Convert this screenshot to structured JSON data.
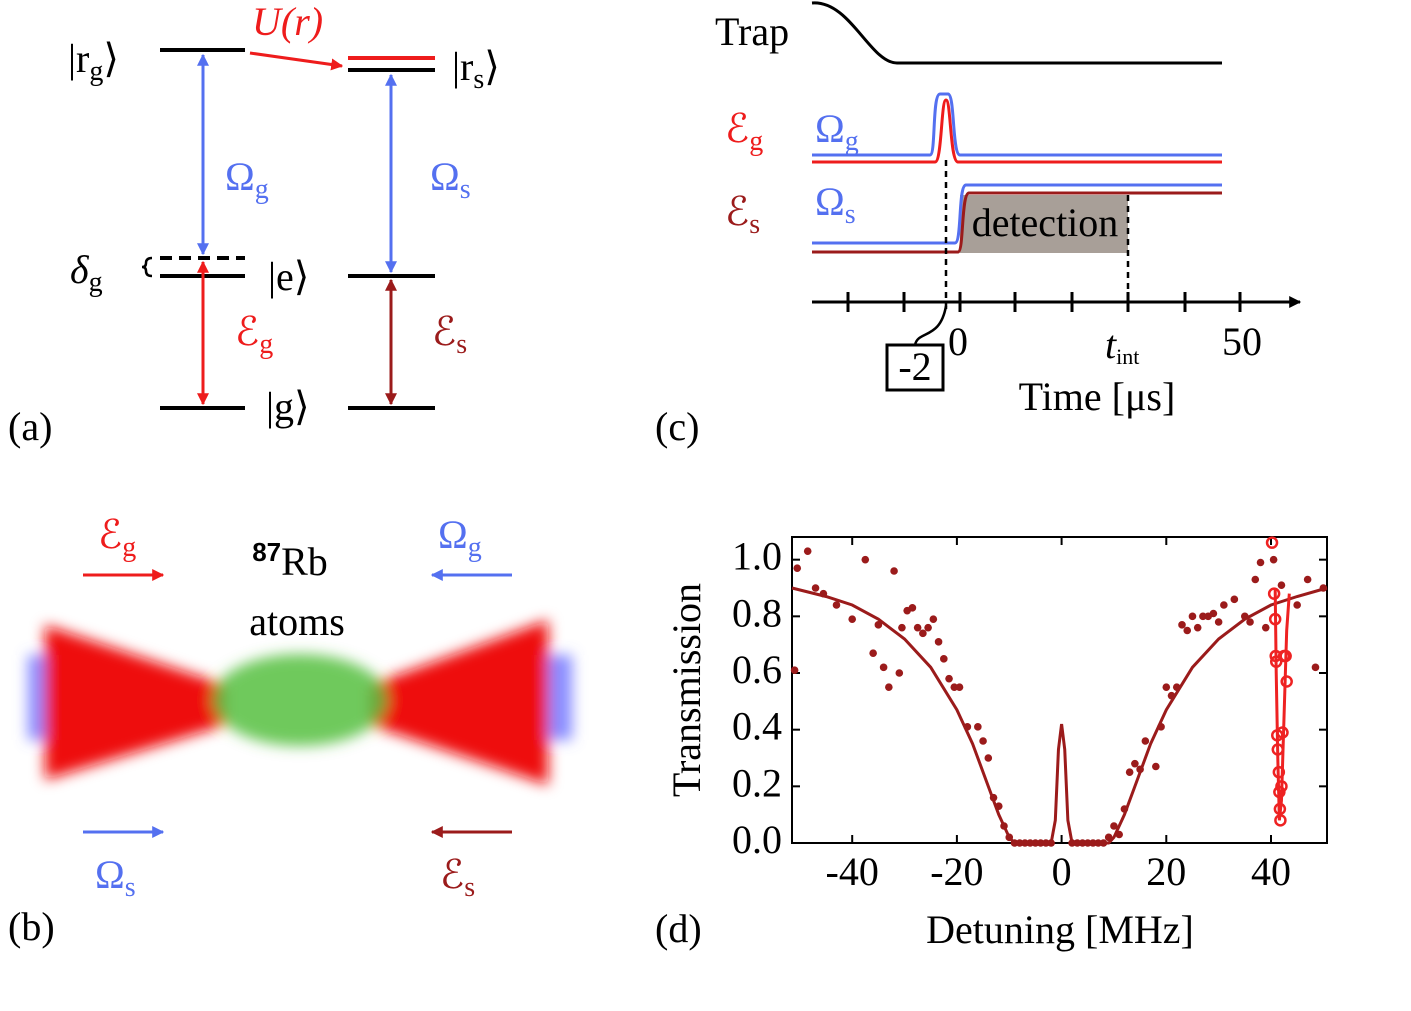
{
  "panel_a": {
    "label": "(a)",
    "r_g": {
      "open": "|r",
      "sub": "g",
      "close": "⟩"
    },
    "U": "U(r)",
    "r_s": {
      "open": "|r",
      "sub": "s",
      "close": "⟩"
    },
    "omega_g": {
      "sym": "Ω",
      "sub": "g"
    },
    "omega_s": {
      "sym": "Ω",
      "sub": "s"
    },
    "delta_g": {
      "sym": "δ",
      "sub": "g"
    },
    "e": "|e⟩",
    "E_g": {
      "sym": "ℰ",
      "sub": "g"
    },
    "E_s": {
      "sym": "ℰ",
      "sub": "s"
    },
    "g": "|g⟩"
  },
  "panel_b": {
    "label": "(b)",
    "E_g": {
      "sym": "ℰ",
      "sub": "g"
    },
    "omega_g": {
      "sym": "Ω",
      "sub": "g"
    },
    "isotope": "87",
    "element": "Rb",
    "atoms": "atoms",
    "omega_s": {
      "sym": "Ω",
      "sub": "s"
    },
    "E_s": {
      "sym": "ℰ",
      "sub": "s"
    }
  },
  "panel_c": {
    "label": "(c)",
    "trap": "Trap",
    "E_g": {
      "sym": "ℰ",
      "sub": "g"
    },
    "omega_g": {
      "sym": "Ω",
      "sub": "g"
    },
    "E_s": {
      "sym": "ℰ",
      "sub": "s"
    },
    "omega_s": {
      "sym": "Ω",
      "sub": "s"
    },
    "detection": "detection",
    "tick_0": "0",
    "t_int": {
      "sym": "t",
      "sub": "int"
    },
    "tick_50": "50",
    "marker": "-2",
    "xlabel": "Time [μs]"
  },
  "chart_data": {
    "type": "scatter",
    "panel_label": "(d)",
    "xlabel": "Detuning [MHz]",
    "ylabel": "Transmission",
    "xlim": [
      -51.5,
      50.7
    ],
    "ylim": [
      0,
      1.08
    ],
    "xticks": [
      -40,
      -20,
      0,
      20,
      40
    ],
    "yticks": [
      {
        "value": 0,
        "label": "0.0"
      },
      {
        "value": 0.2,
        "label": "0.2"
      },
      {
        "value": 0.4,
        "label": "0.4"
      },
      {
        "value": 0.6,
        "label": "0.6"
      },
      {
        "value": 0.8,
        "label": "0.8"
      },
      {
        "value": 1,
        "label": "1.0"
      }
    ],
    "series": [
      {
        "mode": "markers",
        "color": "#9b1b1b",
        "x": [
          -51,
          -50.5,
          -48.5,
          -47,
          -45.5,
          -43,
          -40,
          -37.5,
          -36,
          -35,
          -34,
          -33,
          -32,
          -31,
          -30.5,
          -29.5,
          -28.5,
          -27.5,
          -26.5,
          -25.5,
          -24.5,
          -23.5,
          -22.5,
          -21.5,
          -20.5,
          -19.5,
          -18,
          -16,
          -15,
          -14,
          -13,
          -12,
          -11,
          -10,
          -9,
          -8,
          -7,
          -6,
          -5,
          -4,
          -3,
          -2,
          2,
          3,
          4,
          5,
          6,
          7,
          8,
          9,
          10,
          11,
          12,
          13,
          14,
          15,
          16,
          18,
          19,
          20,
          21,
          22,
          23,
          24,
          25,
          26,
          27,
          28,
          29,
          30,
          31,
          33,
          35,
          36,
          37,
          38,
          39,
          40.5,
          42,
          45,
          47,
          48.5,
          50
        ],
        "values": [
          0.61,
          0.97,
          1.03,
          0.9,
          0.88,
          0.84,
          0.79,
          1.0,
          0.67,
          0.77,
          0.62,
          0.55,
          0.96,
          0.6,
          0.76,
          0.82,
          0.83,
          0.76,
          0.74,
          0.76,
          0.79,
          0.71,
          0.65,
          0.58,
          0.55,
          0.55,
          0.41,
          0.41,
          0.36,
          0.3,
          0.16,
          0.13,
          0.06,
          0.02,
          0,
          0,
          0,
          0,
          0,
          0,
          0,
          0,
          0,
          0,
          0,
          0,
          0,
          0,
          0,
          0.02,
          0.06,
          0.03,
          0.12,
          0.25,
          0.28,
          0.26,
          0.36,
          0.27,
          0.41,
          0.55,
          0.52,
          0.55,
          0.77,
          0.75,
          0.8,
          0.76,
          0.8,
          0.8,
          0.81,
          0.78,
          0.84,
          0.86,
          0.8,
          0.78,
          0.93,
          0.99,
          0.76,
          1.0,
          0.91,
          0.84,
          0.93,
          0.62,
          0.9
        ]
      },
      {
        "mode": "line",
        "color": "#9b1b1b",
        "x": [
          -51.5,
          -45,
          -40,
          -35,
          -30,
          -25,
          -20,
          -17,
          -14,
          -12,
          -10,
          -9,
          -2,
          -1.2,
          -0.6,
          0,
          0.6,
          1.2,
          2,
          9,
          10,
          12,
          14,
          17,
          20,
          25,
          30,
          35,
          40,
          45,
          50.7
        ],
        "values": [
          0.9,
          0.87,
          0.84,
          0.79,
          0.72,
          0.62,
          0.47,
          0.35,
          0.2,
          0.1,
          0.02,
          0,
          0,
          0.08,
          0.33,
          0.42,
          0.33,
          0.08,
          0,
          0,
          0.02,
          0.1,
          0.2,
          0.35,
          0.47,
          0.62,
          0.72,
          0.79,
          0.84,
          0.87,
          0.9
        ]
      },
      {
        "mode": "open-markers",
        "color": "#ee2222",
        "x": [
          40.2,
          40.6,
          40.8,
          40.9,
          41,
          41.2,
          41.3,
          41.5,
          41.6,
          41.7,
          41.8,
          42,
          42.2,
          42.5,
          42.8,
          43
        ],
        "values": [
          1.06,
          0.88,
          0.79,
          0.66,
          0.64,
          0.38,
          0.33,
          0.25,
          0.18,
          0.12,
          0.08,
          0.2,
          0.39,
          0.66,
          0.66,
          0.57
        ]
      },
      {
        "mode": "line",
        "color": "#ee2222",
        "x": [
          40.8,
          41,
          41.3,
          41.6,
          42,
          42.5,
          43,
          43.5
        ],
        "values": [
          0.9,
          0.6,
          0.3,
          0.08,
          0.15,
          0.45,
          0.75,
          0.88
        ]
      }
    ]
  }
}
